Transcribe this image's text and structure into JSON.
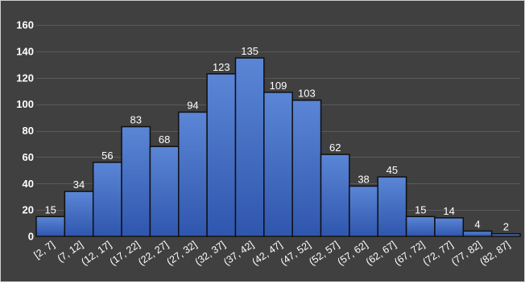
{
  "chart_data": {
    "type": "bar",
    "title": "",
    "xlabel": "",
    "ylabel": "",
    "categories": [
      "[2, 7]",
      "(7, 12]",
      "(12, 17]",
      "(17, 22]",
      "(22, 27]",
      "(27, 32]",
      "(32, 37]",
      "(37, 42]",
      "(42, 47]",
      "(47, 52]",
      "(52, 57]",
      "(57, 62]",
      "(62, 67]",
      "(67, 72]",
      "(72, 77]",
      "(77, 82]",
      "(82, 87]"
    ],
    "values": [
      15,
      34,
      56,
      83,
      68,
      94,
      123,
      135,
      109,
      103,
      62,
      38,
      45,
      15,
      14,
      4,
      2
    ],
    "ylim": [
      0,
      160
    ],
    "y_ticks": [
      0,
      20,
      40,
      60,
      80,
      100,
      120,
      140,
      160
    ],
    "grid": true,
    "legend": "none",
    "colors": {
      "background": "#404040",
      "bar_top": "#5b86d6",
      "bar_bottom": "#2f56ad",
      "bar_edge": "#101010",
      "grid": "#5a5a5a",
      "text": "#ffffff"
    }
  }
}
